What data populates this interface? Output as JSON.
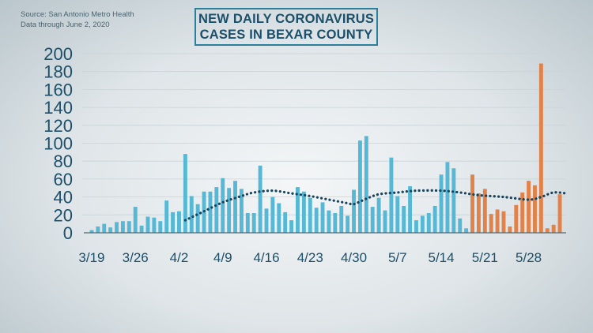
{
  "source_lines": [
    "Source: San Antonio Metro Health",
    "Data through June 2, 2020"
  ],
  "title_lines": [
    "NEW DAILY CORONAVIRUS",
    "CASES IN BEXAR COUNTY"
  ],
  "colors": {
    "blue": "#56b8d4",
    "orange": "#e0824a",
    "trend": "#17455e",
    "text": "#1b4f6a"
  },
  "chart_data": {
    "type": "bar",
    "title": "NEW DAILY CORONAVIRUS CASES IN BEXAR COUNTY",
    "xlabel": "",
    "ylabel": "",
    "ylim": [
      0,
      200
    ],
    "yticks": [
      0,
      20,
      40,
      60,
      80,
      100,
      120,
      140,
      160,
      180,
      200
    ],
    "x_tick_labels": [
      "3/19",
      "3/26",
      "4/2",
      "4/9",
      "4/16",
      "4/23",
      "4/30",
      "5/7",
      "5/14",
      "5/21",
      "5/28"
    ],
    "x_tick_indices": [
      0,
      7,
      14,
      21,
      28,
      35,
      42,
      49,
      56,
      63,
      70
    ],
    "grid": true,
    "legend": "none",
    "orange_from_index": 61,
    "values": [
      3,
      7,
      10,
      6,
      12,
      13,
      13,
      29,
      8,
      18,
      17,
      13,
      36,
      23,
      24,
      88,
      41,
      32,
      46,
      46,
      51,
      61,
      50,
      58,
      49,
      22,
      22,
      75,
      27,
      40,
      33,
      23,
      14,
      51,
      46,
      39,
      28,
      34,
      25,
      22,
      30,
      19,
      48,
      103,
      108,
      29,
      39,
      25,
      84,
      41,
      30,
      52,
      14,
      19,
      22,
      30,
      65,
      79,
      72,
      16,
      5,
      65,
      44,
      49,
      21,
      26,
      24,
      7,
      31,
      45,
      58,
      53,
      189,
      5,
      9,
      43
    ],
    "trend": [
      {
        "i": 15,
        "v": 14
      },
      {
        "i": 18,
        "v": 24
      },
      {
        "i": 21,
        "v": 34
      },
      {
        "i": 24,
        "v": 41
      },
      {
        "i": 26,
        "v": 45
      },
      {
        "i": 29,
        "v": 47
      },
      {
        "i": 32,
        "v": 44
      },
      {
        "i": 35,
        "v": 41
      },
      {
        "i": 38,
        "v": 37
      },
      {
        "i": 41,
        "v": 33
      },
      {
        "i": 42,
        "v": 32
      },
      {
        "i": 44,
        "v": 38
      },
      {
        "i": 46,
        "v": 43
      },
      {
        "i": 49,
        "v": 45
      },
      {
        "i": 52,
        "v": 47
      },
      {
        "i": 56,
        "v": 47
      },
      {
        "i": 59,
        "v": 45
      },
      {
        "i": 62,
        "v": 42
      },
      {
        "i": 66,
        "v": 40
      },
      {
        "i": 70,
        "v": 37
      },
      {
        "i": 72,
        "v": 40
      },
      {
        "i": 74,
        "v": 45
      },
      {
        "i": 76,
        "v": 44
      }
    ]
  }
}
